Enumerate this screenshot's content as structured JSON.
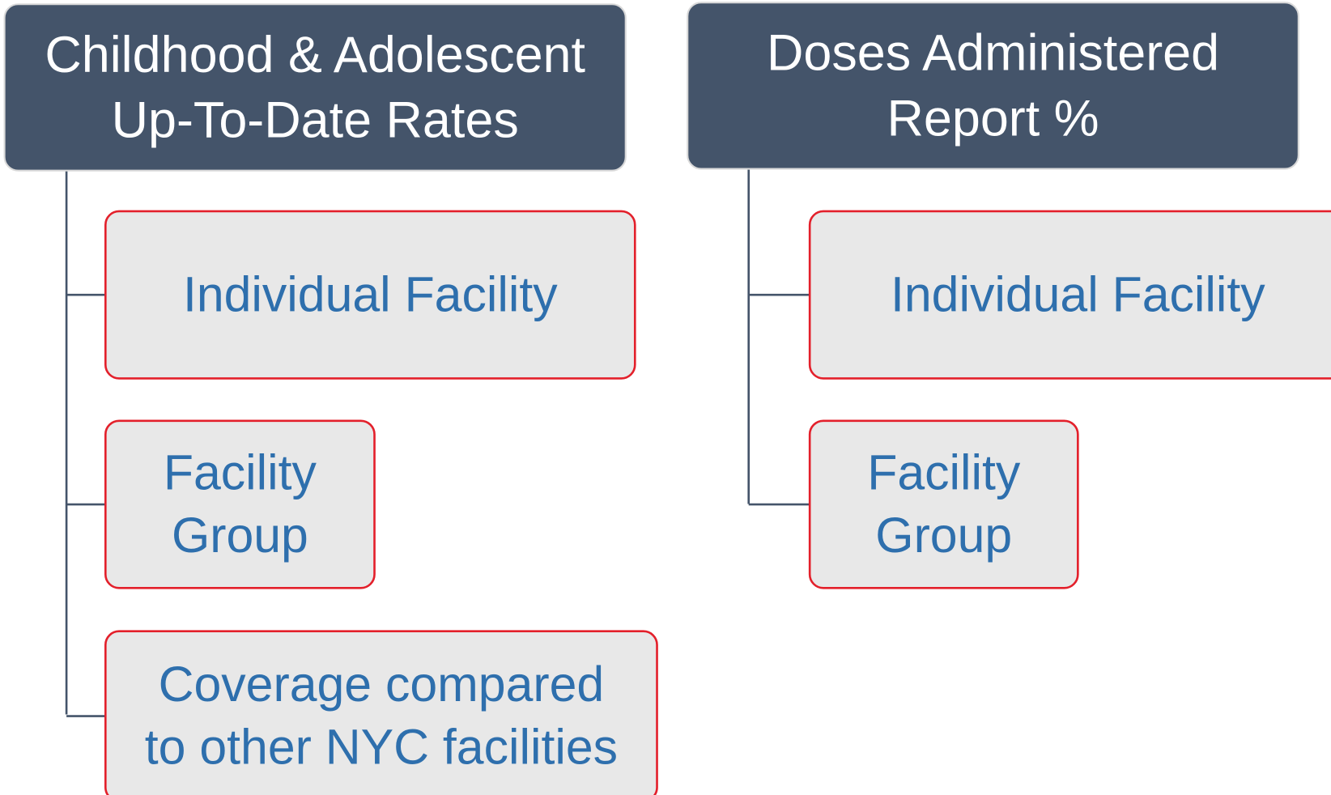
{
  "groups": [
    {
      "title": [
        "Childhood & Adolescent",
        "Up-To-Date Rates"
      ],
      "items": [
        [
          "Individual Facility"
        ],
        [
          "Facility",
          "Group"
        ],
        [
          "Coverage compared",
          "to other NYC facilities"
        ]
      ]
    },
    {
      "title": [
        "Doses Administered",
        "Report %"
      ],
      "items": [
        [
          "Individual Facility"
        ],
        [
          "Facility",
          "Group"
        ]
      ]
    }
  ]
}
